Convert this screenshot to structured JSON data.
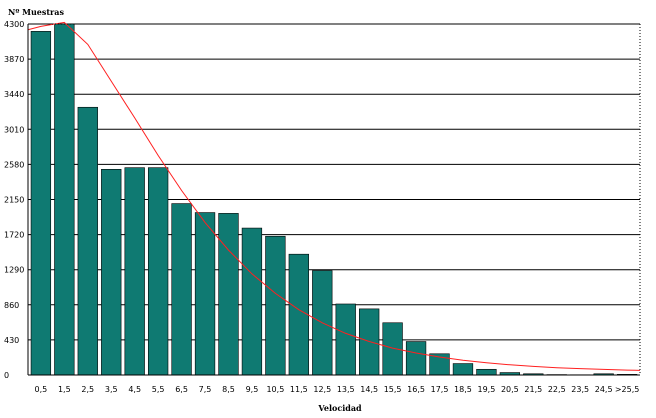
{
  "chart_data": {
    "type": "bar",
    "title": "",
    "ylabel": "Nº Muestras",
    "xlabel": "Velocidad",
    "ylim": [
      0,
      4300
    ],
    "y_ticks": [
      "0",
      "430",
      "860",
      "1290",
      "1720",
      "2150",
      "2580",
      "3010",
      "3440",
      "3870",
      "4300"
    ],
    "grid": "horizontal",
    "categories": [
      "0,5",
      "1,5",
      "2,5",
      "3,5",
      "4,5",
      "5,5",
      "6,5",
      "7,5",
      "8,5",
      "9,5",
      "10,5",
      "11,5",
      "12,5",
      "13,5",
      "14,5",
      "15,5",
      "16,5",
      "17,5",
      "18,5",
      "19,5",
      "20,5",
      "21,5",
      "22,5",
      "23,5",
      "24,5",
      ">25,5"
    ],
    "series": [
      {
        "type": "bar",
        "values": [
          4210,
          4300,
          3280,
          2520,
          2540,
          2540,
          2100,
          1990,
          1980,
          1800,
          1700,
          1480,
          1280,
          870,
          810,
          640,
          410,
          260,
          140,
          70,
          30,
          15,
          5,
          3,
          15,
          8
        ],
        "color": "#0f7a72"
      },
      {
        "type": "line",
        "values": [
          4270,
          4320,
          4050,
          3600,
          3150,
          2690,
          2260,
          1870,
          1530,
          1240,
          1000,
          800,
          640,
          510,
          410,
          330,
          270,
          220,
          180,
          150,
          125,
          105,
          90,
          78,
          68,
          60
        ],
        "color": "#ff2020"
      }
    ]
  }
}
